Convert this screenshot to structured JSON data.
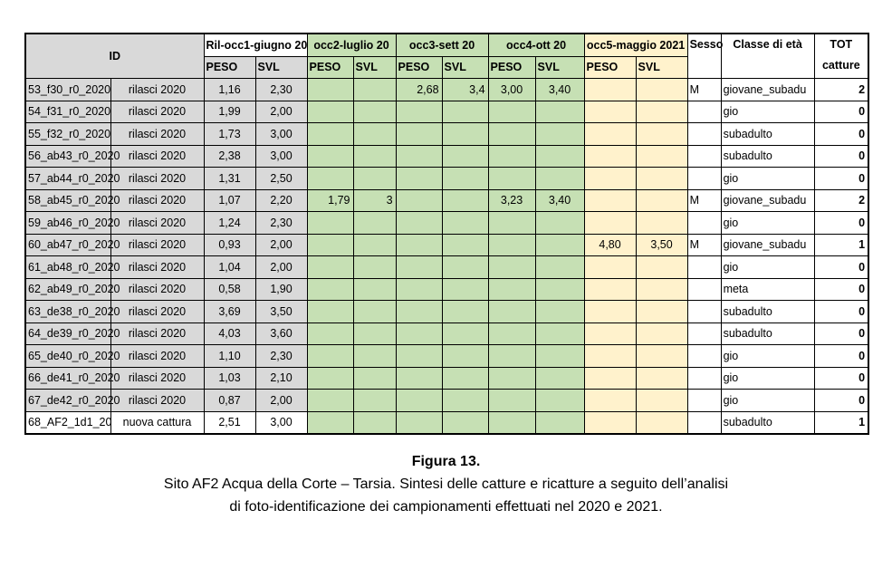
{
  "table": {
    "header": {
      "id": "ID",
      "occ_groups": [
        {
          "label": "Ril-occ1-giugno 20"
        },
        {
          "label": "occ2-luglio 20"
        },
        {
          "label": "occ3-sett 20"
        },
        {
          "label": "occ4-ott 20"
        },
        {
          "label": "occ5-maggio 2021"
        }
      ],
      "peso": "PESO",
      "svl": "SVL",
      "sesso": "Sesso",
      "classe": "Classe di età",
      "tot_line1": "TOT",
      "tot_line2": "catture"
    },
    "rows": [
      {
        "id": "53_f30_r0_2020",
        "tipo": "rilasci 2020",
        "occ": [
          "1,16",
          "2,30",
          "",
          "",
          "2,68",
          "3,4",
          "3,00",
          "3,40",
          "",
          ""
        ],
        "sesso": "M",
        "classe": "giovane_subadu",
        "tot": "2",
        "new": false
      },
      {
        "id": "54_f31_r0_2020",
        "tipo": "rilasci 2020",
        "occ": [
          "1,99",
          "2,00",
          "",
          "",
          "",
          "",
          "",
          "",
          "",
          ""
        ],
        "sesso": "",
        "classe": "gio",
        "tot": "0",
        "new": false
      },
      {
        "id": "55_f32_r0_2020",
        "tipo": "rilasci 2020",
        "occ": [
          "1,73",
          "3,00",
          "",
          "",
          "",
          "",
          "",
          "",
          "",
          ""
        ],
        "sesso": "",
        "classe": "subadulto",
        "tot": "0",
        "new": false
      },
      {
        "id": "56_ab43_r0_2020",
        "tipo": "rilasci 2020",
        "occ": [
          "2,38",
          "3,00",
          "",
          "",
          "",
          "",
          "",
          "",
          "",
          ""
        ],
        "sesso": "",
        "classe": "subadulto",
        "tot": "0",
        "new": false
      },
      {
        "id": "57_ab44_r0_2020",
        "tipo": "rilasci 2020",
        "occ": [
          "1,31",
          "2,50",
          "",
          "",
          "",
          "",
          "",
          "",
          "",
          ""
        ],
        "sesso": "",
        "classe": "gio",
        "tot": "0",
        "new": false
      },
      {
        "id": "58_ab45_r0_2020",
        "tipo": "rilasci 2020",
        "occ": [
          "1,07",
          "2,20",
          "1,79",
          "3",
          "",
          "",
          "3,23",
          "3,40",
          "",
          ""
        ],
        "sesso": "M",
        "classe": "giovane_subadu",
        "tot": "2",
        "new": false
      },
      {
        "id": "59_ab46_r0_2020",
        "tipo": "rilasci 2020",
        "occ": [
          "1,24",
          "2,30",
          "",
          "",
          "",
          "",
          "",
          "",
          "",
          ""
        ],
        "sesso": "",
        "classe": "gio",
        "tot": "0",
        "new": false
      },
      {
        "id": "60_ab47_r0_2020",
        "tipo": "rilasci 2020",
        "occ": [
          "0,93",
          "2,00",
          "",
          "",
          "",
          "",
          "",
          "",
          "4,80",
          "3,50"
        ],
        "sesso": "M",
        "classe": "giovane_subadu",
        "tot": "1",
        "new": false
      },
      {
        "id": "61_ab48_r0_2020",
        "tipo": "rilasci 2020",
        "occ": [
          "1,04",
          "2,00",
          "",
          "",
          "",
          "",
          "",
          "",
          "",
          ""
        ],
        "sesso": "",
        "classe": "gio",
        "tot": "0",
        "new": false
      },
      {
        "id": "62_ab49_r0_2020",
        "tipo": "rilasci 2020",
        "occ": [
          "0,58",
          "1,90",
          "",
          "",
          "",
          "",
          "",
          "",
          "",
          ""
        ],
        "sesso": "",
        "classe": "meta",
        "tot": "0",
        "new": false
      },
      {
        "id": "63_de38_r0_2020",
        "tipo": "rilasci 2020",
        "occ": [
          "3,69",
          "3,50",
          "",
          "",
          "",
          "",
          "",
          "",
          "",
          ""
        ],
        "sesso": "",
        "classe": "subadulto",
        "tot": "0",
        "new": false
      },
      {
        "id": "64_de39_r0_2020",
        "tipo": "rilasci 2020",
        "occ": [
          "4,03",
          "3,60",
          "",
          "",
          "",
          "",
          "",
          "",
          "",
          ""
        ],
        "sesso": "",
        "classe": "subadulto",
        "tot": "0",
        "new": false
      },
      {
        "id": "65_de40_r0_2020",
        "tipo": "rilasci 2020",
        "occ": [
          "1,10",
          "2,30",
          "",
          "",
          "",
          "",
          "",
          "",
          "",
          ""
        ],
        "sesso": "",
        "classe": "gio",
        "tot": "0",
        "new": false
      },
      {
        "id": "66_de41_r0_2020",
        "tipo": "rilasci 2020",
        "occ": [
          "1,03",
          "2,10",
          "",
          "",
          "",
          "",
          "",
          "",
          "",
          ""
        ],
        "sesso": "",
        "classe": "gio",
        "tot": "0",
        "new": false
      },
      {
        "id": "67_de42_r0_2020",
        "tipo": "rilasci 2020",
        "occ": [
          "0,87",
          "2,00",
          "",
          "",
          "",
          "",
          "",
          "",
          "",
          ""
        ],
        "sesso": "",
        "classe": "gio",
        "tot": "0",
        "new": false
      },
      {
        "id": "68_AF2_1d1_20",
        "tipo": "nuova cattura",
        "occ": [
          "2,51",
          "3,00",
          "",
          "",
          "",
          "",
          "",
          "",
          "",
          ""
        ],
        "sesso": "",
        "classe": "subadulto",
        "tot": "1",
        "new": true
      }
    ]
  },
  "figure": {
    "caption_title": "Figura 13.",
    "caption_line1": "Sito AF2 Acqua della Corte – Tarsia. Sintesi delle catture e ricatture a seguito dell’analisi",
    "caption_line2": "di foto-identificazione dei campionamenti effettuati nel 2020 e 2021."
  },
  "colors": {
    "header_gray": "#d9d9d9",
    "occ_green": "#c6e0b4",
    "occ5_cream": "#fff2cc",
    "border": "#000000",
    "background": "#ffffff"
  }
}
